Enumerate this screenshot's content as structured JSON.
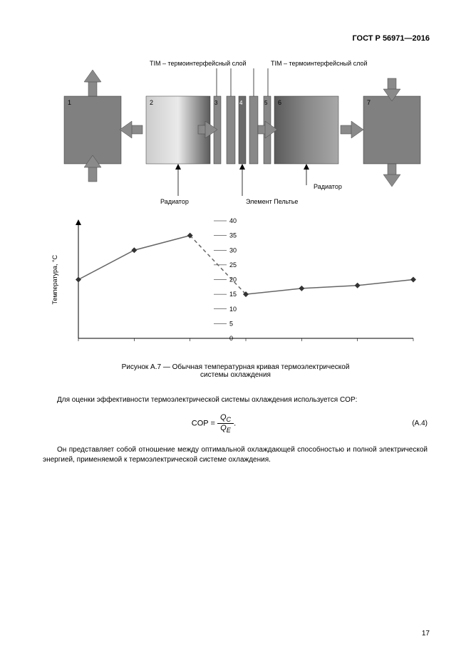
{
  "header": "ГОСТ Р 56971—2016",
  "pageNumber": "17",
  "diagram": {
    "tim_label_left": "TIM – термоинтерфейсный слой",
    "tim_label_right": "TIM – термоинтерфейсный слой",
    "labels": {
      "1": "1",
      "2": "2",
      "3": "3",
      "4": "4",
      "5": "5",
      "6": "6",
      "7": "7"
    },
    "bottom_labels": {
      "radiator_left": "Радиатор",
      "radiator_right": "Радиатор",
      "peltier": "Элемент Пельтье"
    },
    "block_colors": {
      "outer": "#808080",
      "gradient_light": "#cccccc",
      "gradient_dark": "#5a5a5a",
      "tim": "#888888",
      "peltier": "#6a6a6a"
    },
    "arrow_color": "#8a8a8a",
    "arrow_stroke": "#444444"
  },
  "chart": {
    "type": "line",
    "ylabel": "Температура, °C",
    "ylim": [
      0,
      40
    ],
    "ytick_step": 5,
    "yticks": [
      0,
      5,
      10,
      15,
      20,
      25,
      30,
      35,
      40
    ],
    "series": [
      {
        "points": [
          {
            "x": 0,
            "y": 20
          },
          {
            "x": 1,
            "y": 30
          },
          {
            "x": 2,
            "y": 35
          }
        ],
        "style": "solid",
        "side": "left"
      },
      {
        "points": [
          {
            "x": 2,
            "y": 35
          },
          {
            "x": 3,
            "y": 15
          }
        ],
        "style": "dashed",
        "side": "transition"
      },
      {
        "points": [
          {
            "x": 3,
            "y": 15
          },
          {
            "x": 4,
            "y": 17
          },
          {
            "x": 5,
            "y": 18
          },
          {
            "x": 6,
            "y": 20
          }
        ],
        "style": "solid",
        "side": "right"
      }
    ],
    "marker": "diamond",
    "line_color": "#666666",
    "marker_color": "#333333",
    "axis_color": "#000000",
    "label_fontsize": 9,
    "tick_fontsize": 9
  },
  "caption": {
    "line1": "Рисунок А.7 — Обычная температурная кривая термоэлектрической",
    "line2": "системы охлаждения"
  },
  "para1": "Для оценки эффективности термоэлектрической системы охлаждения используется COP:",
  "formula": {
    "lhs": "COP =",
    "num": "Q",
    "num_sub": "C",
    "den": "Q",
    "den_sub": "E",
    "tail": ".",
    "eqnum": "(A.4)"
  },
  "para2": "Он представляет собой отношение между оптимальной охлаждающей способностью и полной электрической энергией, применяемой к термоэлектрической системе охлаждения."
}
